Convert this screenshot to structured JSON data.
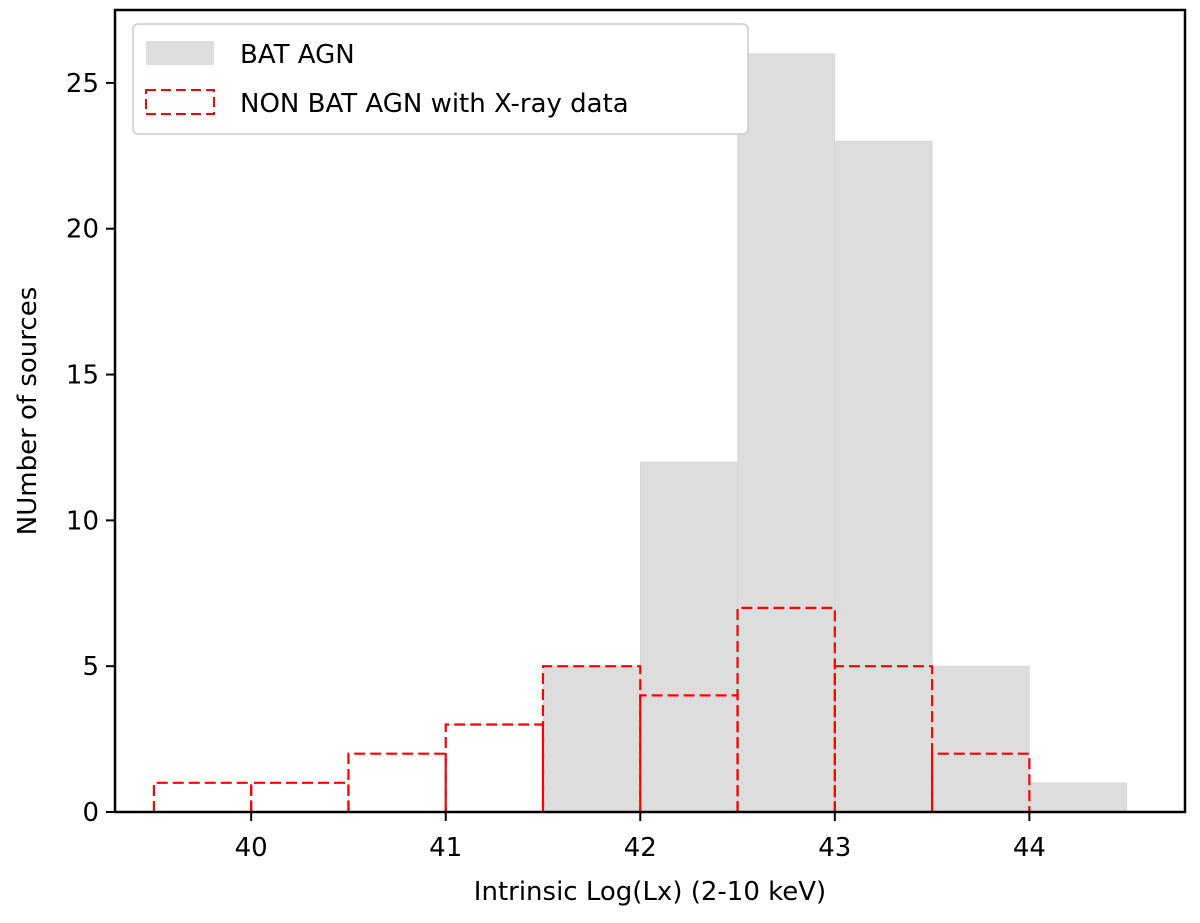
{
  "chart_data": {
    "type": "bar",
    "xlabel": "Intrinsic Log(Lx) (2-10 keV)",
    "ylabel": "NUmber of sources",
    "xlim": [
      39.3,
      44.8
    ],
    "ylim": [
      0,
      27.5
    ],
    "xticks": [
      40,
      41,
      42,
      43,
      44
    ],
    "yticks": [
      0,
      5,
      10,
      15,
      20,
      25
    ],
    "grid": false,
    "legend_position": "upper left",
    "colors": {
      "bat": "#dddddd",
      "non_bat": "#ff0000"
    },
    "series": [
      {
        "name": "BAT AGN",
        "style": "filled",
        "bins": [
          {
            "x0": 41.5,
            "x1": 42.0,
            "value": 5
          },
          {
            "x0": 42.0,
            "x1": 42.5,
            "value": 12
          },
          {
            "x0": 42.5,
            "x1": 43.0,
            "value": 26
          },
          {
            "x0": 43.0,
            "x1": 43.5,
            "value": 23
          },
          {
            "x0": 43.5,
            "x1": 44.0,
            "value": 5
          },
          {
            "x0": 44.0,
            "x1": 44.5,
            "value": 1
          }
        ]
      },
      {
        "name": "NON BAT AGN with X-ray data",
        "style": "dashed-outline",
        "bins": [
          {
            "x0": 39.5,
            "x1": 40.0,
            "value": 1
          },
          {
            "x0": 40.0,
            "x1": 40.5,
            "value": 1
          },
          {
            "x0": 40.5,
            "x1": 41.0,
            "value": 2
          },
          {
            "x0": 41.0,
            "x1": 41.5,
            "value": 3
          },
          {
            "x0": 41.5,
            "x1": 42.0,
            "value": 5
          },
          {
            "x0": 42.0,
            "x1": 42.5,
            "value": 4
          },
          {
            "x0": 42.5,
            "x1": 43.0,
            "value": 7
          },
          {
            "x0": 43.0,
            "x1": 43.5,
            "value": 5
          },
          {
            "x0": 43.5,
            "x1": 44.0,
            "value": 2
          }
        ]
      }
    ]
  }
}
